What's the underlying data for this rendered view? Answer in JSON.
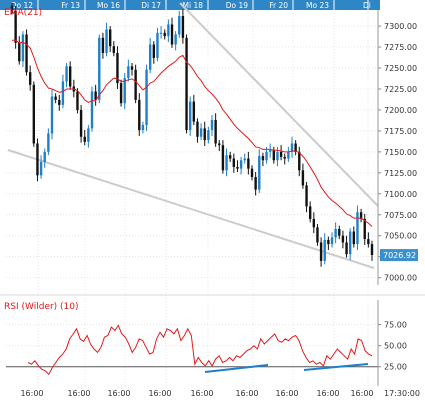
{
  "chart_data": [
    {
      "type": "candlestick",
      "panel": "price",
      "day_labels": [
        "Do 12",
        "Fr 13",
        "Mo 16",
        "Di 17",
        "Mi 18",
        "Do 19",
        "Fr 20",
        "Mo 23",
        "Di"
      ],
      "y_ticks": [
        7300,
        7275,
        7250,
        7225,
        7200,
        7175,
        7150,
        7125,
        7100,
        7075,
        7050,
        7025,
        7000
      ],
      "y_tick_labels": [
        "7300.00",
        "7275.00",
        "7250.00",
        "7225.00",
        "7200.00",
        "7175.00",
        "7150.00",
        "7125.00",
        "7100.00",
        "7075.00",
        "7050.00",
        "7025.00",
        "7000.00"
      ],
      "ylim": [
        6996,
        7318
      ],
      "indicator_label": "EMA(21)",
      "last_price": "7026.92",
      "grid": true,
      "colors": {
        "up": "#1f7fc9",
        "down": "#111111",
        "ema": "#e41a1a",
        "trendline": "#cccccc",
        "last_price_bg": "#3a90cf"
      },
      "price_series": [
        7318,
        7280,
        7258,
        7290,
        7245,
        7230,
        7160,
        7122,
        7138,
        7150,
        7172,
        7216,
        7212,
        7206,
        7234,
        7252,
        7228,
        7222,
        7200,
        7168,
        7162,
        7178,
        7222,
        7212,
        7286,
        7268,
        7296,
        7276,
        7268,
        7232,
        7208,
        7238,
        7252,
        7248,
        7212,
        7176,
        7182,
        7248,
        7278,
        7262,
        7292,
        7292,
        7288,
        7302,
        7278,
        7290,
        7312,
        7286,
        7176,
        7210,
        7186,
        7168,
        7178,
        7164,
        7176,
        7188,
        7160,
        7158,
        7128,
        7146,
        7142,
        7132,
        7130,
        7140,
        7142,
        7130,
        7120,
        7105,
        7145,
        7140,
        7150,
        7152,
        7140,
        7150,
        7144,
        7142,
        7150,
        7160,
        7150,
        7128,
        7110,
        7085,
        7070,
        7060,
        7042,
        7020,
        7045,
        7040,
        7048,
        7058,
        7050,
        7042,
        7028,
        7055,
        7040,
        7078,
        7070,
        7046,
        7040,
        7027
      ],
      "ema_series": [
        7283,
        7283,
        7280,
        7281,
        7278,
        7274,
        7263,
        7250,
        7240,
        7232,
        7226,
        7225,
        7223,
        7221,
        7222,
        7225,
        7225,
        7225,
        7223,
        7218,
        7212,
        7209,
        7211,
        7211,
        7218,
        7223,
        7230,
        7234,
        7238,
        7237,
        7234,
        7234,
        7236,
        7237,
        7234,
        7229,
        7224,
        7227,
        7232,
        7234,
        7239,
        7244,
        7248,
        7252,
        7255,
        7258,
        7263,
        7265,
        7257,
        7253,
        7247,
        7240,
        7235,
        7228,
        7223,
        7219,
        7214,
        7208,
        7200,
        7195,
        7189,
        7183,
        7178,
        7174,
        7170,
        7166,
        7161,
        7156,
        7155,
        7153,
        7153,
        7153,
        7152,
        7152,
        7151,
        7150,
        7150,
        7151,
        7151,
        7149,
        7145,
        7139,
        7132,
        7125,
        7117,
        7108,
        7102,
        7096,
        7092,
        7089,
        7085,
        7081,
        7076,
        7074,
        7071,
        7071,
        7071,
        7068,
        7065,
        7061
      ]
    },
    {
      "type": "line",
      "panel": "indicator",
      "indicator_label": "RSI (Wilder) (10)",
      "y_ticks": [
        75,
        50,
        25
      ],
      "y_tick_labels": [
        "75.00",
        "50.00",
        "25.00"
      ],
      "ylim": [
        14,
        84
      ],
      "rsi_series": [
        30,
        28,
        32,
        26,
        22,
        20,
        16,
        24,
        30,
        36,
        40,
        46,
        58,
        64,
        70,
        58,
        55,
        62,
        52,
        46,
        42,
        48,
        60,
        62,
        72,
        68,
        74,
        64,
        60,
        52,
        42,
        48,
        58,
        56,
        48,
        40,
        42,
        58,
        66,
        60,
        70,
        68,
        64,
        70,
        56,
        62,
        70,
        62,
        28,
        36,
        30,
        26,
        32,
        26,
        34,
        38,
        30,
        32,
        36,
        32,
        38,
        36,
        40,
        44,
        46,
        50,
        46,
        58,
        52,
        56,
        60,
        64,
        56,
        54,
        58,
        56,
        60,
        62,
        56,
        44,
        36,
        30,
        32,
        28,
        30,
        26,
        38,
        34,
        40,
        46,
        42,
        38,
        34,
        46,
        40,
        58,
        56,
        44,
        40,
        38
      ],
      "x_tick_labels": [
        "16:00",
        "16:00",
        "16:00",
        "16:00",
        "16:00",
        "16:00",
        "16:00",
        "16:00",
        "16:00"
      ],
      "current_time_label": "17:30:00"
    }
  ]
}
